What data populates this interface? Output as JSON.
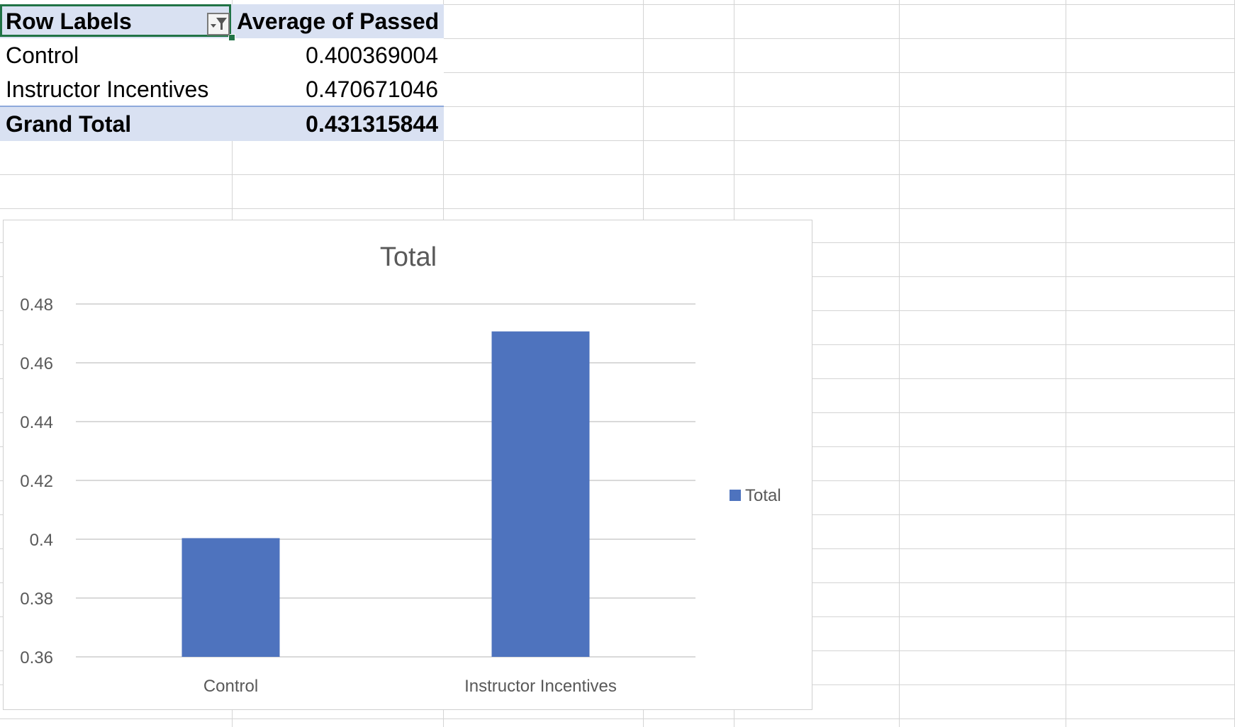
{
  "pivot": {
    "header": {
      "row_labels": "Row Labels",
      "value_header": "Average of Passed"
    },
    "rows": [
      {
        "label": "Control",
        "value": "0.400369004"
      },
      {
        "label": "Instructor Incentives",
        "value": "0.470671046"
      }
    ],
    "grand_total": {
      "label": "Grand Total",
      "value": "0.431315844"
    },
    "filter_icon": "filter-dropdown-icon"
  },
  "colors": {
    "header_fill": "#d9e1f2",
    "active_border": "#217346",
    "bar": "#4e73be",
    "gridline": "#d9d9d9",
    "axis_text": "#595959"
  },
  "chart_data": {
    "type": "bar",
    "title": "Total",
    "categories": [
      "Control",
      "Instructor Incentives"
    ],
    "series": [
      {
        "name": "Total",
        "values": [
          0.400369004,
          0.470671046
        ]
      }
    ],
    "ylim": [
      0.36,
      0.48
    ],
    "yticks": [
      "0.36",
      "0.38",
      "0.4",
      "0.42",
      "0.44",
      "0.46",
      "0.48"
    ],
    "grid": true,
    "legend_position": "right",
    "xlabel": "",
    "ylabel": ""
  }
}
